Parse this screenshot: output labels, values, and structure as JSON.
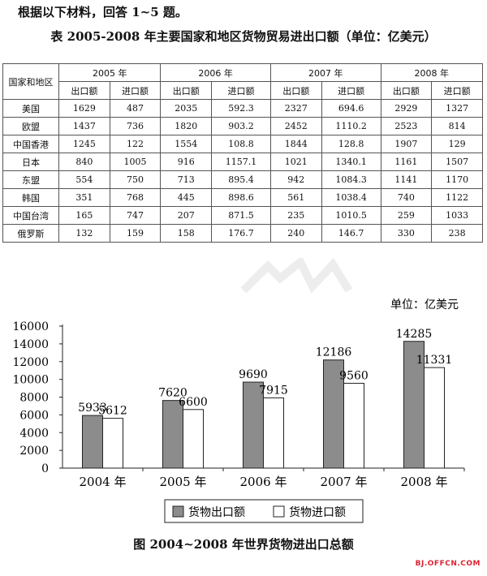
{
  "intro": "根据以下材料，回答 1~5 题。",
  "table": {
    "title": "表 2005-2008 年主要国家和地区货物贸易进出口额（单位：亿美元）",
    "corner_header": "国家和地区",
    "years": [
      "2005 年",
      "2006 年",
      "2007 年",
      "2008 年"
    ],
    "sub_headers": [
      "出口额",
      "进口额"
    ],
    "rows": [
      {
        "name": "美国",
        "values": [
          "1629",
          "487",
          "2035",
          "592.3",
          "2327",
          "694.6",
          "2929",
          "1327"
        ]
      },
      {
        "name": "欧盟",
        "values": [
          "1437",
          "736",
          "1820",
          "903.2",
          "2452",
          "1110.2",
          "2523",
          "814"
        ]
      },
      {
        "name": "中国香港",
        "values": [
          "1245",
          "122",
          "1554",
          "108.8",
          "1844",
          "128.8",
          "1907",
          "129"
        ]
      },
      {
        "name": "日本",
        "values": [
          "840",
          "1005",
          "916",
          "1157.1",
          "1021",
          "1340.1",
          "1161",
          "1507"
        ]
      },
      {
        "name": "东盟",
        "values": [
          "554",
          "750",
          "713",
          "895.4",
          "942",
          "1084.3",
          "1141",
          "1170"
        ]
      },
      {
        "name": "韩国",
        "values": [
          "351",
          "768",
          "445",
          "898.6",
          "561",
          "1038.4",
          "740",
          "1122"
        ]
      },
      {
        "name": "中国台湾",
        "values": [
          "165",
          "747",
          "207",
          "871.5",
          "235",
          "1010.5",
          "259",
          "1033"
        ]
      },
      {
        "name": "俄罗斯",
        "values": [
          "132",
          "159",
          "158",
          "176.7",
          "240",
          "146.7",
          "330",
          "238"
        ]
      }
    ]
  },
  "chart_data": {
    "type": "bar",
    "title": "图 2004~2008 年世界货物进出口总额",
    "unit_label": "单位：亿美元",
    "categories": [
      "2004 年",
      "2005 年",
      "2006 年",
      "2007 年",
      "2008 年"
    ],
    "series": [
      {
        "name": "货物出口额",
        "values": [
          5933,
          7620,
          9690,
          12186,
          14285
        ],
        "color": "#8c8c8c"
      },
      {
        "name": "货物进口额",
        "values": [
          5612,
          6600,
          7915,
          9560,
          11331
        ],
        "color": "#ffffff"
      }
    ],
    "ylim": [
      0,
      16000
    ],
    "yticks": [
      "0",
      "2000",
      "4000",
      "6000",
      "8000",
      "10000",
      "12000",
      "14000",
      "16000"
    ],
    "grid": false,
    "legend_position": "bottom"
  },
  "watermark_site": "BJ.OFFCN.COM"
}
